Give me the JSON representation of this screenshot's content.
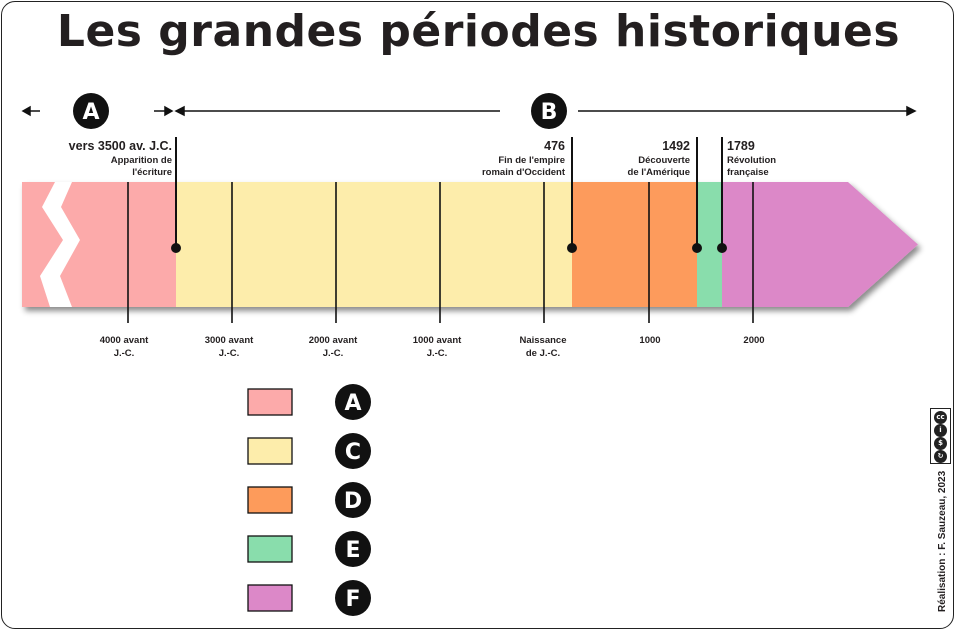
{
  "title": "Les grandes périodes historiques",
  "period_labels": {
    "a_top": "A",
    "b_top": "B"
  },
  "events": [
    {
      "year": "vers 3500 av. J.C.",
      "line1": "Apparition de",
      "line2": "l'écriture"
    },
    {
      "year": "476",
      "line1": "Fin de l'empire",
      "line2": "romain d'Occident"
    },
    {
      "year": "1492",
      "line1": "Découverte",
      "line2": "de l'Amérique"
    },
    {
      "year": "1789",
      "line1": "Révolution",
      "line2": "française"
    }
  ],
  "ticks": [
    {
      "line1": "4000 avant",
      "line2": "J.-C."
    },
    {
      "line1": "3000 avant",
      "line2": "J.-C."
    },
    {
      "line1": "2000 avant",
      "line2": "J.-C."
    },
    {
      "line1": "1000 avant",
      "line2": "J.-C."
    },
    {
      "line1": "Naissance",
      "line2": "de J.-C."
    },
    {
      "line1": "1000",
      "line2": ""
    },
    {
      "line1": "2000",
      "line2": ""
    }
  ],
  "legend": [
    {
      "letter": "A",
      "color": "#fcaaaa"
    },
    {
      "letter": "C",
      "color": "#fdedab"
    },
    {
      "letter": "D",
      "color": "#fd9b5b"
    },
    {
      "letter": "E",
      "color": "#89ddac"
    },
    {
      "letter": "F",
      "color": "#dc88c8"
    }
  ],
  "segment_colors": {
    "prehistory": "#fcaaaa",
    "antiquity": "#fdedab",
    "middle_ages": "#fd9b5b",
    "modern": "#89ddac",
    "contemporary": "#dc88c8"
  },
  "credit": "Réalisation : F. Sauzeau, 2023",
  "license": {
    "icons": [
      "cc-icon",
      "by-icon",
      "nc-icon",
      "sa-icon"
    ]
  }
}
